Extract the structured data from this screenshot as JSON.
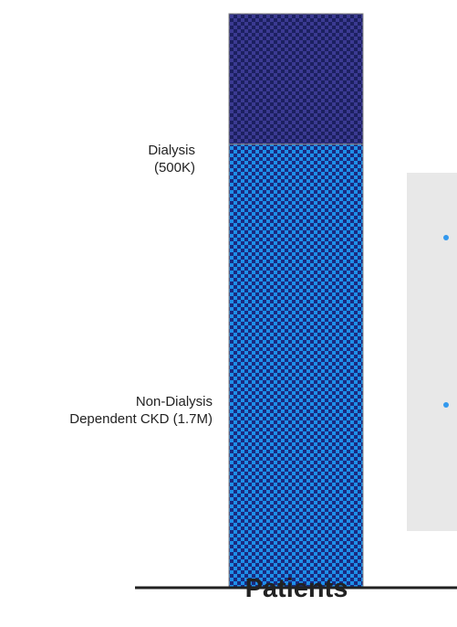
{
  "chart_data": {
    "type": "bar",
    "stacked": true,
    "categories": [
      "Patients"
    ],
    "series": [
      {
        "name": "Non-Dialysis Dependent CKD (1.7M)",
        "values": [
          1700000
        ],
        "label_lines": [
          "Non-Dialysis",
          "Dependent CKD (1.7M)"
        ],
        "color": "#1e8fe8",
        "pattern_color": "#1a2a80"
      },
      {
        "name": "Dialysis (500K)",
        "values": [
          500000
        ],
        "label_lines": [
          "Dialysis",
          "(500K)"
        ],
        "color": "#3b3a92",
        "pattern_color": "#1c2060"
      }
    ],
    "ylim": [
      0,
      2200000
    ],
    "grid": false,
    "legend": "none",
    "xlabel": "",
    "ylabel": "",
    "axis_color": "#222222"
  },
  "side_panel": {
    "background": "#e8e8e8",
    "bullet_color": "#3399ee"
  }
}
